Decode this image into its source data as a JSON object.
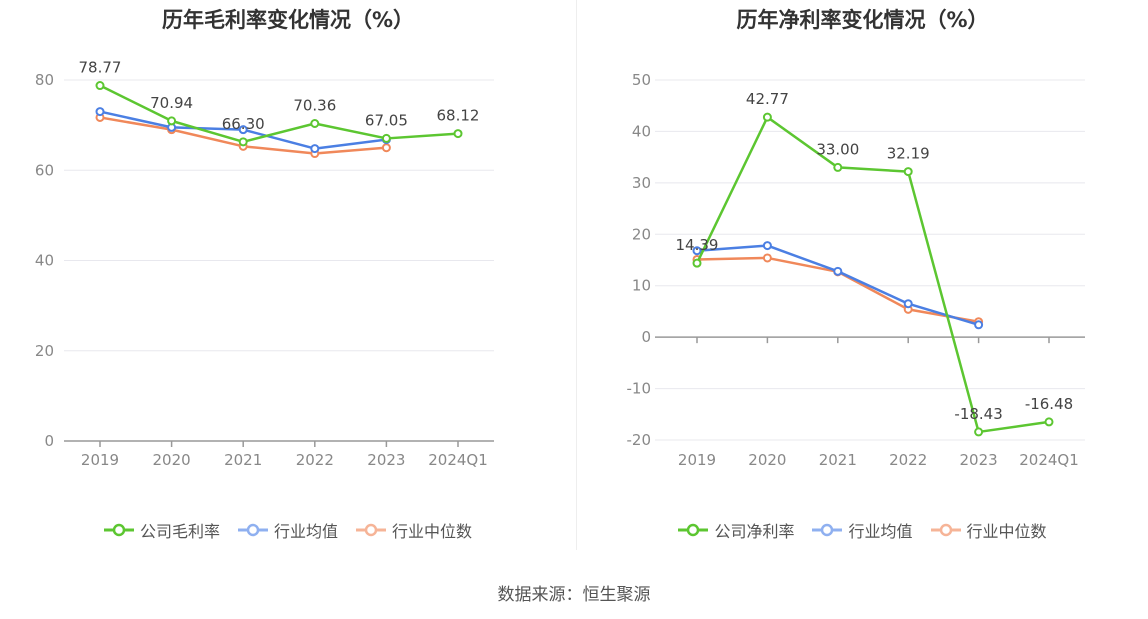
{
  "source": "数据来源：恒生聚源",
  "colors": {
    "company": "#5cc631",
    "avg": "#4b7fe3",
    "median": "#f0885a",
    "avg_legend": "#8fb0f0",
    "median_legend": "#f6b497"
  },
  "chart_data": [
    {
      "type": "line",
      "title": "历年毛利率变化情况（%）",
      "categories": [
        "2019",
        "2020",
        "2021",
        "2022",
        "2023",
        "2024Q1"
      ],
      "ylim": [
        0,
        80
      ],
      "yticks": [
        "0",
        "20",
        "40",
        "60",
        "80"
      ],
      "grid": true,
      "legend_placement": "bottom",
      "series": [
        {
          "name": "公司毛利率",
          "values": [
            78.77,
            70.94,
            66.3,
            70.36,
            67.05,
            68.12
          ],
          "labels": [
            "78.77",
            "70.94",
            "66.30",
            "70.36",
            "67.05",
            "68.12"
          ]
        },
        {
          "name": "行业均值",
          "values": [
            73.0,
            69.5,
            69.0,
            64.8,
            66.8,
            null
          ]
        },
        {
          "name": "行业中位数",
          "values": [
            71.7,
            69.0,
            65.3,
            63.7,
            65.0,
            null
          ]
        }
      ]
    },
    {
      "type": "line",
      "title": "历年净利率变化情况（%）",
      "categories": [
        "2019",
        "2020",
        "2021",
        "2022",
        "2023",
        "2024Q1"
      ],
      "ylim": [
        -20,
        50
      ],
      "yticks": [
        "-20",
        "-10",
        "0",
        "10",
        "20",
        "30",
        "40",
        "50"
      ],
      "grid": true,
      "legend_placement": "bottom",
      "series": [
        {
          "name": "公司净利率",
          "values": [
            14.39,
            42.77,
            33.0,
            32.19,
            -18.43,
            -16.48
          ],
          "labels": [
            "14.39",
            "42.77",
            "33.00",
            "32.19",
            "-18.43",
            "-16.48"
          ]
        },
        {
          "name": "行业均值",
          "values": [
            16.8,
            17.8,
            12.8,
            6.5,
            2.4,
            null
          ]
        },
        {
          "name": "行业中位数",
          "values": [
            15.1,
            15.4,
            12.7,
            5.4,
            3.0,
            null
          ]
        }
      ]
    }
  ]
}
